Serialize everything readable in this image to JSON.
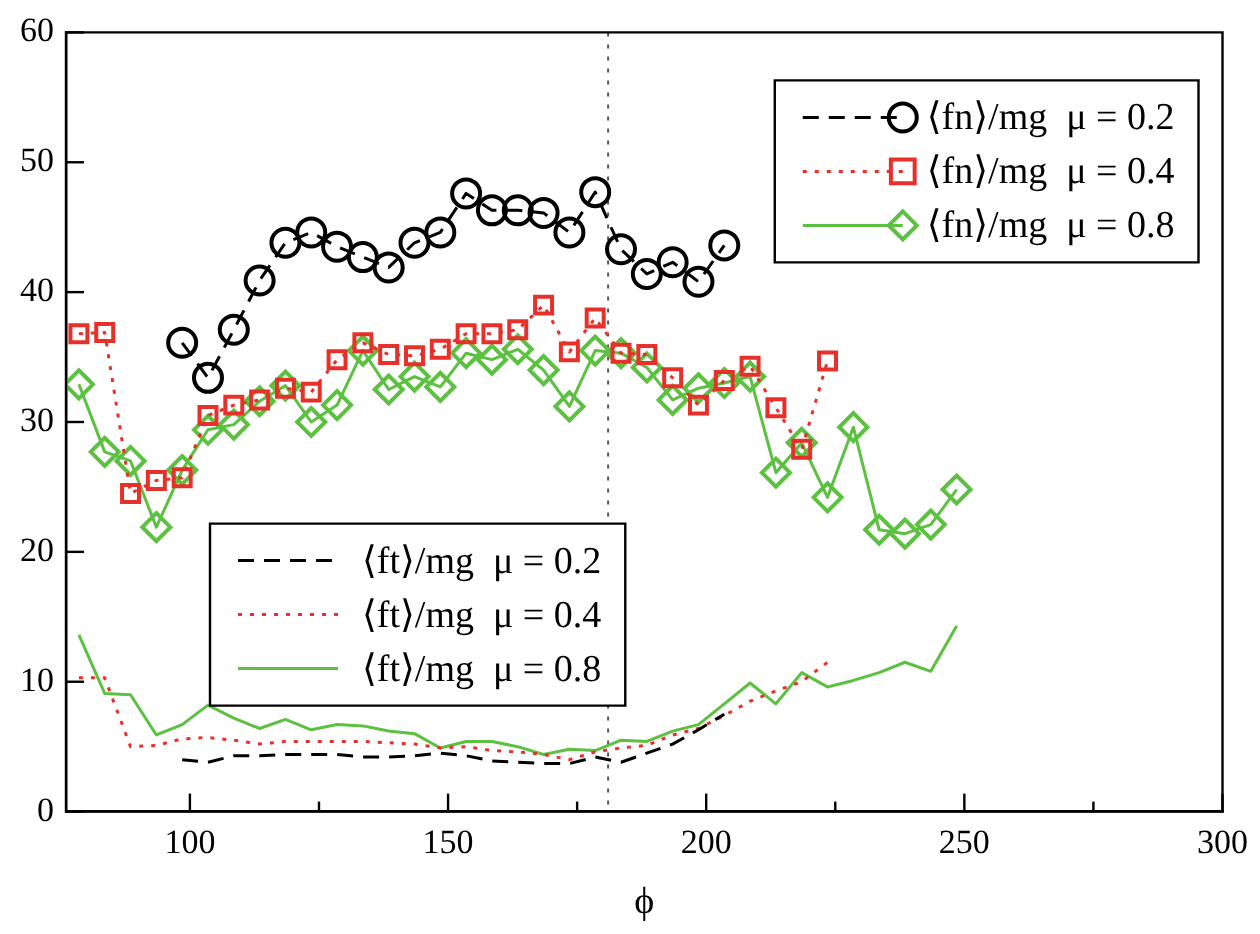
{
  "chart_data": {
    "type": "line",
    "xlabel": "ϕ",
    "xlim": [
      76,
      300
    ],
    "ylim": [
      0,
      60
    ],
    "xticks": [
      100,
      {
        "value": 125,
        "label": null
      },
      150,
      {
        "value": 175,
        "label": null
      },
      200,
      {
        "value": 225,
        "label": null
      },
      250,
      {
        "value": 275,
        "label": null
      },
      300
    ],
    "yticks": [
      0,
      10,
      20,
      30,
      40,
      50,
      60
    ],
    "legend": "top right",
    "ref_lines": [
      {
        "axis": "x",
        "value": 181,
        "color": "#555555",
        "line_style": "dotted"
      }
    ],
    "series": [
      {
        "name": "⟨fn⟩/mg  μ = 0.2",
        "color": "#000000",
        "marker": "circle",
        "line_style": "dashed",
        "x": [
          98.5,
          103.5,
          108.5,
          113.5,
          118.5,
          123.5,
          128.5,
          133.5,
          138.5,
          143.5,
          148.5,
          153.5,
          158.5,
          163.5,
          168.5,
          173.5,
          178.5,
          183.5,
          188.5,
          193.5,
          198.5,
          203.5
        ],
        "values": [
          36.1,
          33.4,
          37.1,
          40.9,
          43.8,
          44.6,
          43.5,
          42.7,
          41.9,
          43.8,
          44.6,
          47.6,
          46.3,
          46.3,
          46.1,
          44.6,
          47.7,
          43.3,
          41.4,
          42.3,
          40.8,
          43.6
        ]
      },
      {
        "name": "⟨fn⟩/mg  μ = 0.4",
        "color": "#e8302a",
        "marker": "square",
        "line_style": "dotted",
        "x": [
          78.5,
          83.5,
          88.5,
          93.5,
          98.5,
          103.5,
          108.5,
          113.5,
          118.5,
          123.5,
          128.5,
          133.5,
          138.5,
          143.5,
          148.5,
          153.5,
          158.5,
          163.5,
          168.5,
          173.5,
          178.5,
          183.5,
          188.5,
          193.5,
          198.5,
          203.5,
          208.5,
          213.5,
          218.5,
          223.5
        ],
        "values": [
          36.8,
          36.9,
          24.5,
          25.5,
          25.7,
          30.5,
          31.3,
          31.7,
          32.6,
          32.3,
          34.8,
          36.1,
          35.2,
          35.1,
          35.6,
          36.8,
          36.8,
          37.1,
          39.0,
          35.4,
          38.0,
          35.3,
          35.2,
          33.4,
          31.3,
          33.2,
          34.3,
          31.1,
          27.9,
          34.7
        ]
      },
      {
        "name": "⟨fn⟩/mg  μ = 0.8",
        "color": "#5cc040",
        "marker": "diamond",
        "line_style": "solid",
        "x": [
          78.5,
          83.5,
          88.5,
          93.5,
          98.5,
          103.5,
          108.5,
          113.5,
          118.5,
          123.5,
          128.5,
          133.5,
          138.5,
          143.5,
          148.5,
          153.5,
          158.5,
          163.5,
          168.5,
          173.5,
          178.5,
          183.5,
          188.5,
          193.5,
          198.5,
          203.5,
          208.5,
          213.5,
          218.5,
          223.5,
          228.5,
          233.5,
          238.5,
          243.5,
          248.5
        ],
        "values": [
          32.9,
          27.7,
          27.0,
          21.9,
          26.3,
          29.4,
          29.8,
          31.6,
          32.8,
          30.0,
          31.3,
          35.5,
          32.5,
          33.5,
          32.7,
          35.3,
          34.8,
          35.6,
          34.0,
          31.2,
          35.5,
          35.3,
          34.2,
          31.7,
          32.6,
          33.0,
          33.5,
          26.1,
          28.4,
          24.2,
          29.6,
          21.7,
          21.4,
          22.1,
          24.8
        ]
      },
      {
        "name": "⟨ft⟩/mg  μ = 0.2",
        "color": "#000000",
        "marker": "none",
        "line_style": "dashed",
        "x": [
          98.5,
          103.5,
          108.5,
          113.5,
          118.5,
          123.5,
          128.5,
          133.5,
          138.5,
          143.5,
          148.5,
          153.5,
          158.5,
          163.5,
          168.5,
          173.5,
          178.5,
          183.5,
          188.5,
          193.5,
          198.5,
          203.5
        ],
        "values": [
          4.0,
          3.8,
          4.3,
          4.3,
          4.4,
          4.4,
          4.4,
          4.2,
          4.2,
          4.3,
          4.5,
          4.3,
          3.9,
          3.8,
          3.7,
          3.7,
          4.2,
          3.8,
          4.5,
          5.2,
          6.3,
          7.5
        ]
      },
      {
        "name": "⟨ft⟩/mg  μ = 0.4",
        "color": "#e8302a",
        "marker": "none",
        "line_style": "dotted",
        "x": [
          78.5,
          83.5,
          88.5,
          93.5,
          98.5,
          103.5,
          108.5,
          113.5,
          118.5,
          123.5,
          128.5,
          133.5,
          138.5,
          143.5,
          148.5,
          153.5,
          158.5,
          163.5,
          168.5,
          173.5,
          178.5,
          183.5,
          188.5,
          193.5,
          198.5,
          203.5,
          208.5,
          213.5,
          218.5,
          223.5
        ],
        "values": [
          10.3,
          10.3,
          5.0,
          5.1,
          5.6,
          5.7,
          5.5,
          5.2,
          5.4,
          5.4,
          5.4,
          5.4,
          5.3,
          5.2,
          4.9,
          5.0,
          4.7,
          4.6,
          4.4,
          4.0,
          4.6,
          4.9,
          5.1,
          5.9,
          6.4,
          7.4,
          8.5,
          9.3,
          10.0,
          11.5
        ]
      },
      {
        "name": "⟨ft⟩/mg  μ = 0.8",
        "color": "#5cc040",
        "marker": "none",
        "line_style": "solid",
        "x": [
          78.5,
          83.5,
          88.5,
          93.5,
          98.5,
          103.5,
          108.5,
          113.5,
          118.5,
          123.5,
          128.5,
          133.5,
          138.5,
          143.5,
          148.5,
          153.5,
          158.5,
          163.5,
          168.5,
          173.5,
          178.5,
          183.5,
          188.5,
          193.5,
          198.5,
          203.5,
          208.5,
          213.5,
          218.5,
          223.5,
          228.5,
          233.5,
          238.5,
          243.5,
          248.5
        ],
        "values": [
          13.6,
          9.1,
          9.0,
          5.9,
          6.7,
          8.2,
          7.2,
          6.4,
          7.1,
          6.3,
          6.7,
          6.6,
          6.2,
          6.0,
          4.9,
          5.4,
          5.4,
          5.0,
          4.4,
          4.8,
          4.7,
          5.5,
          5.4,
          6.2,
          6.7,
          8.3,
          9.9,
          8.3,
          10.7,
          9.6,
          10.1,
          10.7,
          11.5,
          10.8,
          14.3
        ]
      }
    ]
  }
}
